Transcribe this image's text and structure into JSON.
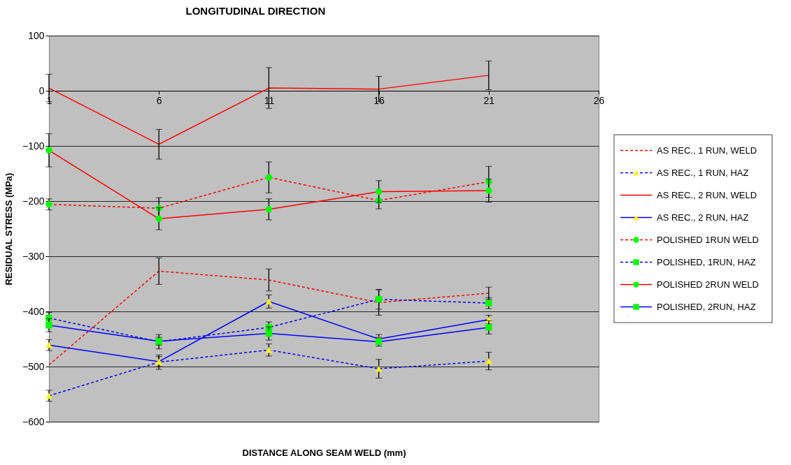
{
  "chart_data": {
    "type": "line",
    "title": "LONGITUDINAL DIRECTION",
    "xlabel": "DISTANCE ALONG SEAM WELD (mm)",
    "ylabel": "RESIDUAL STRESS (MPa)",
    "x": [
      1,
      6,
      11,
      16,
      21
    ],
    "xlim": [
      1,
      26
    ],
    "xticks": [
      1,
      6,
      11,
      16,
      21,
      26
    ],
    "ylim": [
      -600,
      100
    ],
    "yticks": [
      -600,
      -500,
      -400,
      -300,
      -200,
      -100,
      0,
      100
    ],
    "grid": "y",
    "legend": "right",
    "series": [
      {
        "name": "AS REC., 1 RUN, WELD",
        "color": "#ff0000",
        "line_style": "dashed",
        "marker": "none",
        "values": [
          -497,
          -327,
          -343,
          -384,
          -367
        ],
        "errors": [
          null,
          24,
          20,
          23,
          11
        ]
      },
      {
        "name": "AS REC., 1 RUN, HAZ",
        "color": "#0000ff",
        "line_style": "dashed",
        "marker": "triangle",
        "values": [
          -553,
          -492,
          -470,
          -504,
          -490
        ],
        "errors": [
          10,
          13,
          11,
          17,
          16
        ]
      },
      {
        "name": "AS REC., 2 RUN, WELD",
        "color": "#ff0000",
        "line_style": "solid",
        "marker": "none",
        "values": [
          5,
          -97,
          5,
          3,
          28
        ],
        "errors": [
          25,
          27,
          37,
          23,
          26
        ]
      },
      {
        "name": "AS REC., 2 RUN, HAZ",
        "color": "#0000ff",
        "line_style": "solid",
        "marker": "triangle",
        "values": [
          -461,
          -491,
          -382,
          -450,
          -415
        ],
        "errors": [
          10,
          9,
          12,
          8,
          8
        ]
      },
      {
        "name": "POLISHED 1RUN WELD",
        "color": "#ff0000",
        "line_style": "dashed",
        "marker": "circle",
        "values": [
          -206,
          -213,
          -157,
          -199,
          -165
        ],
        "errors": [
          10,
          19,
          28,
          15,
          28
        ]
      },
      {
        "name": "POLISHED, 1RUN, HAZ",
        "color": "#0000ff",
        "line_style": "dashed",
        "marker": "square",
        "values": [
          -412,
          -455,
          -429,
          -378,
          -385
        ],
        "errors": [
          10,
          13,
          10,
          18,
          10
        ]
      },
      {
        "name": "POLISHED 2RUN WELD",
        "color": "#ff0000",
        "line_style": "solid",
        "marker": "circle",
        "values": [
          -108,
          -232,
          -215,
          -183,
          -181
        ],
        "errors": [
          30,
          20,
          19,
          20,
          21
        ]
      },
      {
        "name": "POLISHED, 2RUN, HAZ",
        "color": "#0000ff",
        "line_style": "solid",
        "marker": "square",
        "values": [
          -425,
          -454,
          -440,
          -455,
          -429
        ],
        "errors": [
          12,
          7,
          12,
          8,
          12
        ]
      }
    ]
  }
}
